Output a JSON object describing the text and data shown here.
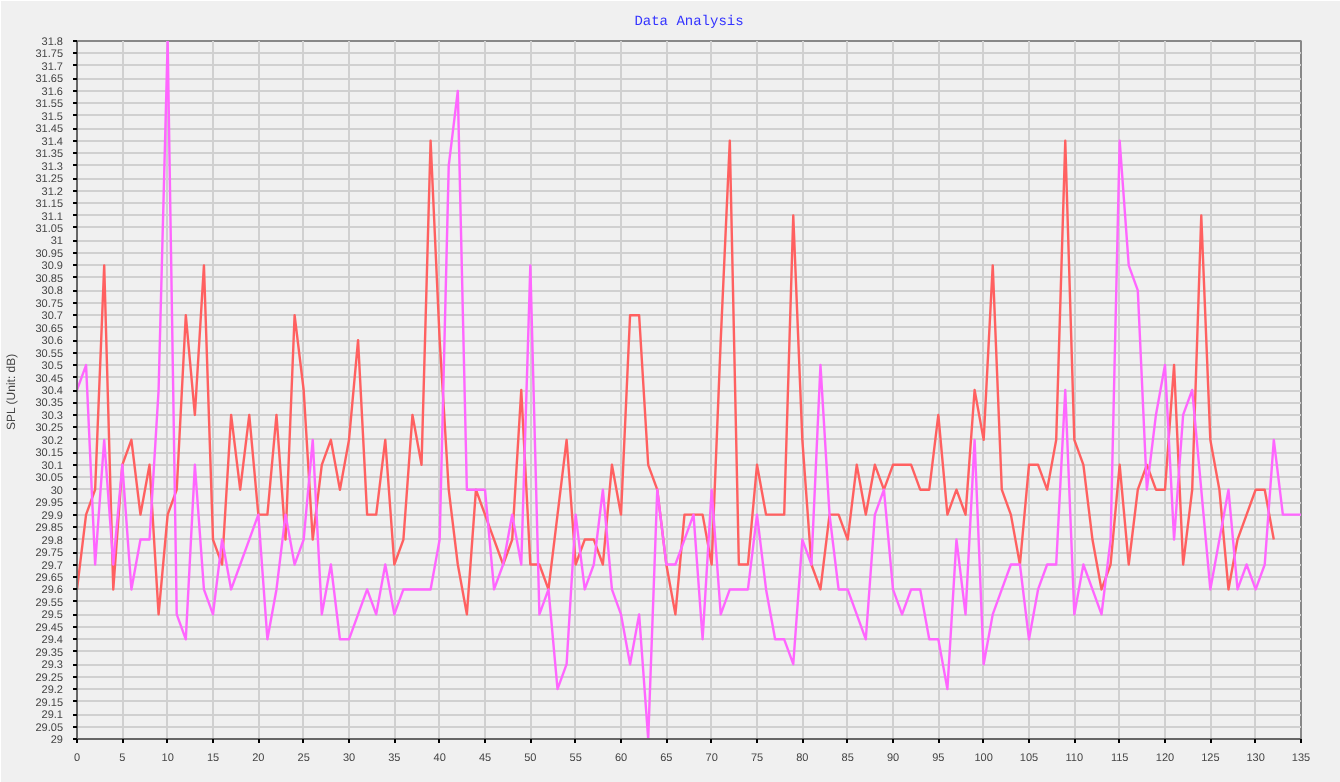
{
  "chart_data": {
    "type": "line",
    "title": "Data Analysis",
    "ylabel": "SPL  (Unit: dB)",
    "x": [
      0,
      1,
      2,
      3,
      4,
      5,
      6,
      7,
      8,
      9,
      10,
      11,
      12,
      13,
      14,
      15,
      16,
      17,
      18,
      19,
      20,
      21,
      22,
      23,
      24,
      25,
      26,
      27,
      28,
      29,
      30,
      31,
      32,
      33,
      34,
      35,
      36,
      37,
      38,
      39,
      40,
      41,
      42,
      43,
      44,
      45,
      46,
      47,
      48,
      49,
      50,
      51,
      52,
      53,
      54,
      55,
      56,
      57,
      58,
      59,
      60,
      61,
      62,
      63,
      64,
      65,
      66,
      67,
      68,
      69,
      70,
      71,
      72,
      73,
      74,
      75,
      76,
      77,
      78,
      79,
      80,
      81,
      82,
      83,
      84,
      85,
      86,
      87,
      88,
      89,
      90,
      91,
      92,
      93,
      94,
      95,
      96,
      97,
      98,
      99,
      100,
      101,
      102,
      103,
      104,
      105,
      106,
      107,
      108,
      109,
      110,
      111,
      112,
      113,
      114,
      115,
      116,
      117,
      118,
      119,
      120,
      121,
      122,
      123,
      124,
      125,
      126,
      127,
      128,
      129,
      130,
      131,
      132,
      133,
      134,
      135
    ],
    "series": [
      {
        "color": "#ff6060",
        "values": [
          29.6,
          29.9,
          30.0,
          30.9,
          29.6,
          30.1,
          30.2,
          29.9,
          30.1,
          29.5,
          29.9,
          30.0,
          30.7,
          30.3,
          30.9,
          29.8,
          29.7,
          30.3,
          30.0,
          30.3,
          29.9,
          29.9,
          30.3,
          29.8,
          30.7,
          30.4,
          29.8,
          30.1,
          30.2,
          30.0,
          30.2,
          30.6,
          29.9,
          29.9,
          30.2,
          29.7,
          29.8,
          30.3,
          30.1,
          31.4,
          30.6,
          30.0,
          29.7,
          29.5,
          30.0,
          29.9,
          29.8,
          29.7,
          29.8,
          30.4,
          29.7,
          29.7,
          29.6,
          29.9,
          30.2,
          29.7,
          29.8,
          29.8,
          29.7,
          30.1,
          29.9,
          30.7,
          30.7,
          30.1,
          30.0,
          29.7,
          29.5,
          29.9,
          29.9,
          29.9,
          29.7,
          30.6,
          31.4,
          29.7,
          29.7,
          30.1,
          29.9,
          29.9,
          29.9,
          31.1,
          30.2,
          29.7,
          29.6,
          29.9,
          29.9,
          29.8,
          30.1,
          29.9,
          30.1,
          30.0,
          30.1,
          30.1,
          30.1,
          30.0,
          30.0,
          30.3,
          29.9,
          30.0,
          29.9,
          30.4,
          30.2,
          30.9,
          30.0,
          29.9,
          29.7,
          30.1,
          30.1,
          30.0,
          30.2,
          31.4,
          30.2,
          30.1,
          29.8,
          29.6,
          29.7,
          30.1,
          29.7,
          30.0,
          30.1,
          30.0,
          30.0,
          30.5,
          29.7,
          30.0,
          31.1,
          30.2,
          30.0,
          29.6,
          29.8,
          29.9,
          30.0,
          30.0,
          29.8,
          null,
          null,
          null
        ]
      },
      {
        "color": "#ff66ff",
        "values": [
          30.4,
          30.5,
          29.7,
          30.2,
          29.7,
          30.1,
          29.6,
          29.8,
          29.8,
          30.4,
          31.8,
          29.5,
          29.4,
          30.1,
          29.6,
          29.5,
          29.8,
          29.6,
          29.7,
          29.8,
          29.9,
          29.4,
          29.6,
          29.9,
          29.7,
          29.8,
          30.2,
          29.5,
          29.7,
          29.4,
          29.4,
          29.5,
          29.6,
          29.5,
          29.7,
          29.5,
          29.6,
          29.6,
          29.6,
          29.6,
          29.8,
          31.3,
          31.6,
          30.0,
          30.0,
          30.0,
          29.6,
          29.7,
          29.9,
          29.7,
          30.9,
          29.5,
          29.6,
          29.2,
          29.3,
          29.9,
          29.6,
          29.7,
          30.0,
          29.6,
          29.5,
          29.3,
          29.5,
          29.0,
          30.0,
          29.7,
          29.7,
          29.8,
          29.9,
          29.4,
          30.0,
          29.5,
          29.6,
          29.6,
          29.6,
          29.9,
          29.6,
          29.4,
          29.4,
          29.3,
          29.8,
          29.7,
          30.5,
          29.9,
          29.6,
          29.6,
          29.5,
          29.4,
          29.9,
          30.0,
          29.6,
          29.5,
          29.6,
          29.6,
          29.4,
          29.4,
          29.2,
          29.8,
          29.5,
          30.2,
          29.3,
          29.5,
          29.6,
          29.7,
          29.7,
          29.4,
          29.6,
          29.7,
          29.7,
          30.4,
          29.5,
          29.7,
          29.6,
          29.5,
          29.8,
          31.4,
          30.9,
          30.8,
          30.0,
          30.3,
          30.5,
          29.8,
          30.3,
          30.4,
          30.0,
          29.6,
          29.8,
          30.0,
          29.6,
          29.7,
          29.6,
          29.7,
          30.2,
          29.9,
          29.9,
          29.9
        ]
      }
    ],
    "xlim": [
      0,
      135
    ],
    "xticks": [
      0,
      5,
      10,
      15,
      20,
      25,
      30,
      35,
      40,
      45,
      50,
      55,
      60,
      65,
      70,
      75,
      80,
      85,
      90,
      95,
      100,
      105,
      110,
      115,
      120,
      125,
      130,
      135
    ],
    "ylim": [
      29,
      31.8
    ],
    "yticks": [
      29,
      29.05,
      29.1,
      29.15,
      29.2,
      29.25,
      29.3,
      29.35,
      29.4,
      29.45,
      29.5,
      29.55,
      29.6,
      29.65,
      29.7,
      29.75,
      29.8,
      29.85,
      29.9,
      29.95,
      30,
      30.05,
      30.1,
      30.15,
      30.2,
      30.25,
      30.3,
      30.35,
      30.4,
      30.45,
      30.5,
      30.55,
      30.6,
      30.65,
      30.7,
      30.75,
      30.8,
      30.85,
      30.9,
      30.95,
      31,
      31.05,
      31.1,
      31.15,
      31.2,
      31.25,
      31.3,
      31.35,
      31.4,
      31.45,
      31.5,
      31.55,
      31.6,
      31.65,
      31.7,
      31.75,
      31.8
    ],
    "grid": true,
    "marker": "none",
    "line_style": "solid"
  }
}
